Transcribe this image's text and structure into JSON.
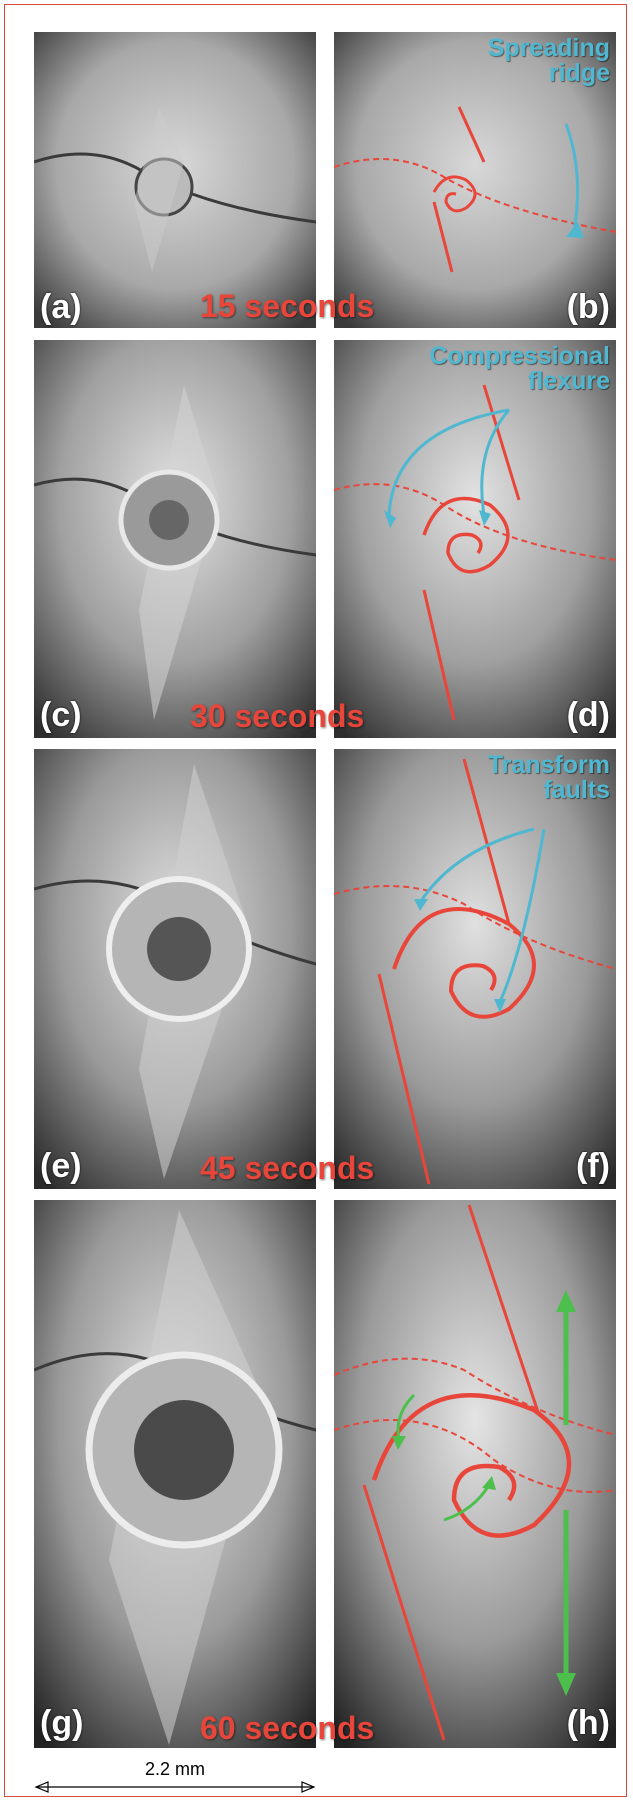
{
  "panels": [
    {
      "letter": "(a)"
    },
    {
      "letter": "(b)"
    },
    {
      "letter": "(c)"
    },
    {
      "letter": "(d)"
    },
    {
      "letter": "(e)"
    },
    {
      "letter": "(f)"
    },
    {
      "letter": "(g)"
    },
    {
      "letter": "(h)"
    }
  ],
  "times": [
    "15 seconds",
    "30 seconds",
    "45 seconds",
    "60 seconds"
  ],
  "annotations": {
    "spreading_ridge": "Spreading\nridge",
    "compressional_flexure": "Compressional\nflexure",
    "transform_faults": "Transform\nfaults"
  },
  "scale_bar": "2.2 mm",
  "colors": {
    "frame": "#d24a3a",
    "fault_lines": "#e8463a",
    "annotation": "#4fb8d0",
    "arrows_green": "#4cbf4c"
  }
}
